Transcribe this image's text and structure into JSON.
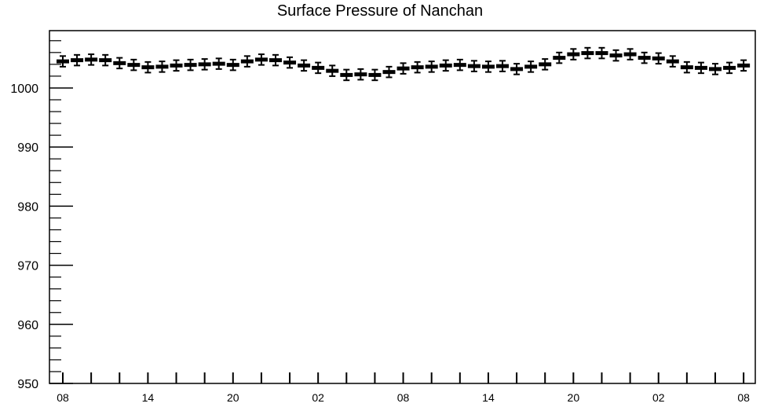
{
  "chart_data": {
    "type": "scatter",
    "title": "Surface Pressure of Nanchan",
    "xlabel": "",
    "ylabel": "",
    "ylim": [
      950,
      1009.7
    ],
    "y_ticks": [
      950,
      960,
      970,
      980,
      990,
      1000
    ],
    "x_tick_labels": [
      "08",
      "14",
      "20",
      "02",
      "08",
      "14",
      "20",
      "02",
      "08"
    ],
    "x_tick_every_n_points": 6,
    "grid": false,
    "marker_color": "#000000",
    "series": [
      {
        "values": [
          1004.5,
          1004.7,
          1004.8,
          1004.7,
          1004.2,
          1003.9,
          1003.5,
          1003.6,
          1003.8,
          1003.9,
          1004.0,
          1004.1,
          1003.9,
          1004.5,
          1004.8,
          1004.7,
          1004.3,
          1003.8,
          1003.4,
          1002.9,
          1002.2,
          1002.3,
          1002.2,
          1002.7,
          1003.3,
          1003.5,
          1003.6,
          1003.8,
          1003.9,
          1003.7,
          1003.6,
          1003.7,
          1003.2,
          1003.6,
          1004.0,
          1005.1,
          1005.7,
          1005.9,
          1005.9,
          1005.5,
          1005.7,
          1005.1,
          1005.0,
          1004.5,
          1003.5,
          1003.4,
          1003.2,
          1003.4,
          1003.8
        ],
        "errors": [
          0.9,
          0.9,
          0.9,
          0.9,
          0.9,
          0.9,
          0.9,
          0.9,
          0.9,
          0.9,
          0.9,
          0.9,
          0.9,
          0.9,
          0.9,
          0.9,
          0.9,
          0.9,
          0.9,
          0.9,
          0.9,
          0.9,
          0.9,
          0.9,
          0.9,
          0.9,
          0.9,
          0.9,
          0.9,
          0.9,
          0.9,
          0.9,
          0.9,
          0.9,
          0.9,
          0.9,
          0.9,
          0.9,
          0.9,
          0.9,
          0.9,
          0.9,
          0.9,
          0.9,
          0.9,
          0.9,
          0.9,
          0.9,
          0.9
        ]
      }
    ]
  }
}
